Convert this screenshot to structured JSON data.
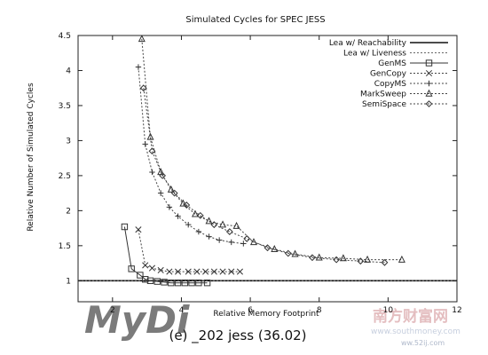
{
  "chart_data": {
    "type": "line",
    "title": "Simulated Cycles for SPEC JESS",
    "xlabel": "Relative Memory Footprint",
    "ylabel": "Relative Number of Simulated Cycles",
    "caption": "(e)  _202 jess (36.02)",
    "xlim": [
      1,
      12
    ],
    "ylim": [
      0.7,
      4.5
    ],
    "xticks": [
      2,
      4,
      6,
      8,
      10,
      12
    ],
    "yticks": [
      1,
      1.5,
      2,
      2.5,
      3,
      3.5,
      4,
      4.5
    ],
    "legend_position": "top-right",
    "grid": false,
    "series": [
      {
        "name": "Lea w/ Reachability",
        "marker": "none",
        "style": "solid",
        "x": [
          1,
          12
        ],
        "y": [
          1,
          1
        ]
      },
      {
        "name": "Lea w/ Liveness",
        "marker": "none",
        "style": "dashed",
        "x": [
          1,
          12
        ],
        "y": [
          1,
          1
        ]
      },
      {
        "name": "GenMS",
        "marker": "square",
        "style": "solid",
        "x": [
          2.35,
          2.55,
          2.8,
          2.95,
          3.1,
          3.3,
          3.5,
          3.7,
          3.9,
          4.1,
          4.3,
          4.5,
          4.75
        ],
        "y": [
          1.77,
          1.17,
          1.08,
          1.02,
          1.0,
          0.99,
          0.98,
          0.97,
          0.97,
          0.97,
          0.97,
          0.97,
          0.97
        ]
      },
      {
        "name": "GenCopy",
        "marker": "cross",
        "style": "dotted",
        "x": [
          2.75,
          2.95,
          3.15,
          3.4,
          3.65,
          3.9,
          4.2,
          4.45,
          4.7,
          4.95,
          5.2,
          5.45,
          5.7
        ],
        "y": [
          1.73,
          1.22,
          1.18,
          1.15,
          1.13,
          1.13,
          1.13,
          1.13,
          1.13,
          1.13,
          1.13,
          1.13,
          1.13
        ]
      },
      {
        "name": "CopyMS",
        "marker": "plus",
        "style": "dotted",
        "x": [
          2.75,
          2.95,
          3.15,
          3.4,
          3.65,
          3.9,
          4.2,
          4.5,
          4.8,
          5.1,
          5.45,
          5.8
        ],
        "y": [
          4.05,
          2.95,
          2.55,
          2.25,
          2.05,
          1.92,
          1.8,
          1.7,
          1.63,
          1.58,
          1.55,
          1.53
        ]
      },
      {
        "name": "MarkSweep",
        "marker": "triangle",
        "style": "dotted",
        "x": [
          2.85,
          3.1,
          3.4,
          3.7,
          4.05,
          4.4,
          4.8,
          5.2,
          5.6,
          6.1,
          6.7,
          7.3,
          8.0,
          8.7,
          9.4,
          10.4
        ],
        "y": [
          4.45,
          3.05,
          2.55,
          2.3,
          2.1,
          1.95,
          1.85,
          1.8,
          1.78,
          1.55,
          1.45,
          1.38,
          1.33,
          1.32,
          1.3,
          1.3
        ]
      },
      {
        "name": "SemiSpace",
        "marker": "diamond",
        "style": "dotted",
        "x": [
          2.9,
          3.15,
          3.45,
          3.8,
          4.15,
          4.55,
          4.95,
          5.4,
          5.9,
          6.5,
          7.1,
          7.8,
          8.5,
          9.2,
          9.9
        ],
        "y": [
          3.75,
          2.85,
          2.5,
          2.25,
          2.08,
          1.93,
          1.8,
          1.7,
          1.6,
          1.47,
          1.39,
          1.33,
          1.3,
          1.28,
          1.26
        ]
      }
    ]
  },
  "watermarks": {
    "left": "MyDi",
    "right_cn": "南方财富网",
    "right_sub": "www.southmoney.com",
    "right_url": "ww.52ij.com"
  }
}
